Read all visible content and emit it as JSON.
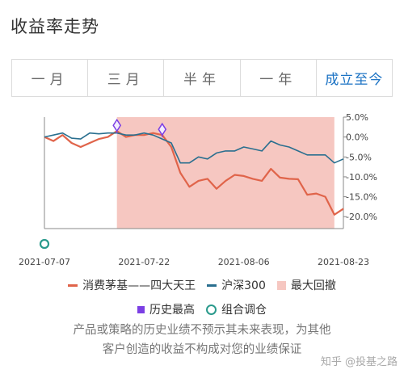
{
  "page": {
    "title": "收益率走势",
    "tabs": [
      {
        "label": "一月"
      },
      {
        "label": "三月"
      },
      {
        "label": "半年"
      },
      {
        "label": "一年"
      },
      {
        "label": "成立至今"
      }
    ],
    "active_tab": 4,
    "disclaimer": [
      "产品或策略的历史业绩不预示其未来表现，为其他",
      "客户创造的收益不构成对您的业绩保证"
    ],
    "watermark": "知乎 @投基之路"
  },
  "legend": {
    "series1": "消费茅基——四大天王",
    "series2": "沪深300",
    "drawdown": "最大回撤",
    "high": "历史最高",
    "rebalance": "组合调仓"
  },
  "colors": {
    "series1": "#e0644a",
    "series2": "#2a6f8f",
    "drawdown": "#f6c7c1",
    "high_marker": "#7b3fe4",
    "rebalance_marker": "#2a9a8c",
    "active_tab": "#1c73c4"
  },
  "chart_data": {
    "type": "line",
    "x_tick_labels": [
      "2021-07-07",
      "2021-07-22",
      "2021-08-06",
      "2021-08-23"
    ],
    "ylim": [
      -23,
      5
    ],
    "y_ticks": [
      5,
      0,
      -5,
      -10,
      -15,
      -20
    ],
    "y_tick_labels": [
      "5.0%",
      "0.0%",
      "-5.0%",
      "-10.0%",
      "-15.0%",
      "-20.0%"
    ],
    "y_axis_side": "right",
    "grid": false,
    "series": [
      {
        "name": "消费茅基——四大天王",
        "color": "#e0644a",
        "values": [
          0,
          -1,
          0.5,
          -1.5,
          -2.5,
          -1.5,
          -0.5,
          0,
          1.5,
          0,
          0.5,
          0.5,
          1,
          0.5,
          -2.5,
          -9,
          -12.5,
          -11,
          -10.5,
          -13,
          -11,
          -9.5,
          -9.8,
          -10.5,
          -11,
          -8,
          -10.2,
          -10.5,
          -10.6,
          -14.5,
          -14.2,
          -15,
          -19.5,
          -18
        ]
      },
      {
        "name": "沪深300",
        "color": "#2a6f8f",
        "values": [
          0,
          0.5,
          1,
          -0.3,
          -0.5,
          1,
          0.8,
          1,
          1,
          0.5,
          0.5,
          1,
          0.5,
          -0.5,
          -1.5,
          -6.5,
          -6.5,
          -5,
          -5.5,
          -4,
          -3.5,
          -3.5,
          -2.5,
          -3,
          -3.5,
          -1,
          -2,
          -2.5,
          -3.5,
          -4.5,
          -4.5,
          -4.5,
          -6.5,
          -5.5
        ]
      }
    ],
    "max_drawdown_range": [
      8,
      32
    ],
    "high_marker_indices": [
      8,
      13
    ],
    "rebalance_indices": [
      0
    ],
    "legend_position": "bottom"
  }
}
